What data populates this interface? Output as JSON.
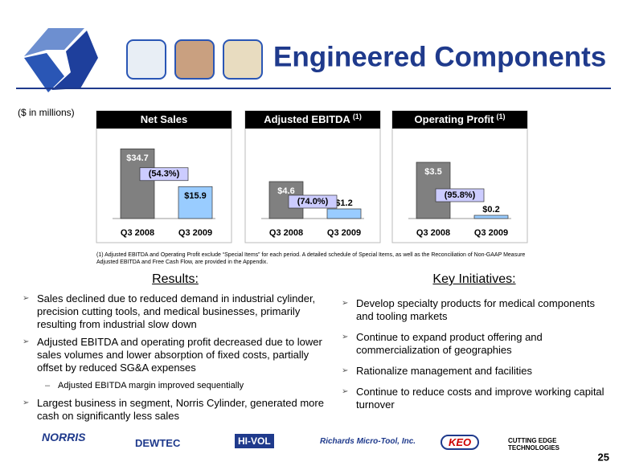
{
  "header": {
    "title": "Engineered Components",
    "units": "($ in millions)",
    "page_number": "25"
  },
  "chart_data": [
    {
      "type": "bar",
      "title": "Net Sales",
      "categories": [
        "Q3 2008",
        "Q3 2009"
      ],
      "values": [
        34.7,
        15.9
      ],
      "value_labels": [
        "$34.7",
        "$15.9"
      ],
      "colors": [
        "#808080",
        "#99ccff"
      ],
      "ylim": [
        0,
        40
      ],
      "change_label": "(54.3%)"
    },
    {
      "type": "bar",
      "title": "Adjusted EBITDA",
      "title_note": "(1)",
      "categories": [
        "Q3 2008",
        "Q3 2009"
      ],
      "values": [
        4.6,
        1.2
      ],
      "value_labels": [
        "$4.6",
        "$1.2"
      ],
      "colors": [
        "#808080",
        "#99ccff"
      ],
      "ylim": [
        0,
        10
      ],
      "change_label": "(74.0%)"
    },
    {
      "type": "bar",
      "title": "Operating Profit",
      "title_note": "(1)",
      "categories": [
        "Q3 2008",
        "Q3 2009"
      ],
      "values": [
        3.5,
        0.2
      ],
      "value_labels": [
        "$3.5",
        "$0.2"
      ],
      "colors": [
        "#808080",
        "#99ccff"
      ],
      "ylim": [
        0,
        5
      ],
      "change_label": "(95.8%)"
    }
  ],
  "footnote": "(1) Adjusted EBITDA and Operating Profit exclude “Special Items” for each period. A detailed schedule of Special Items, as well as the Reconciliation of Non-GAAP Measure Adjusted EBITDA and Free Cash Flow, are provided in the Appendix.",
  "results": {
    "heading": "Results:",
    "bullets": [
      "Sales declined due to reduced demand in industrial cylinder, precision cutting tools, and medical businesses, primarily resulting from industrial slow down",
      "Adjusted EBITDA and operating profit decreased due to lower sales volumes and lower absorption of fixed costs, partially offset by reduced SG&A expenses"
    ],
    "sub_bullet": "Adjusted EBITDA margin improved sequentially",
    "last_bullet": "Largest business in segment, Norris Cylinder, generated more cash on significantly less sales"
  },
  "initiatives": {
    "heading": "Key Initiatives:",
    "bullets": [
      "Develop specialty products for medical components and tooling markets",
      "Continue to expand product offering and commercialization of geographies",
      "Rationalize management and facilities",
      "Continue to reduce costs and improve working capital turnover"
    ]
  },
  "logos": [
    "NORRIS",
    "DEWTEC",
    "HI-VOL",
    "Richards Micro-Tool, Inc.",
    "KEO",
    "CUTTING EDGE TECHNOLOGIES"
  ]
}
